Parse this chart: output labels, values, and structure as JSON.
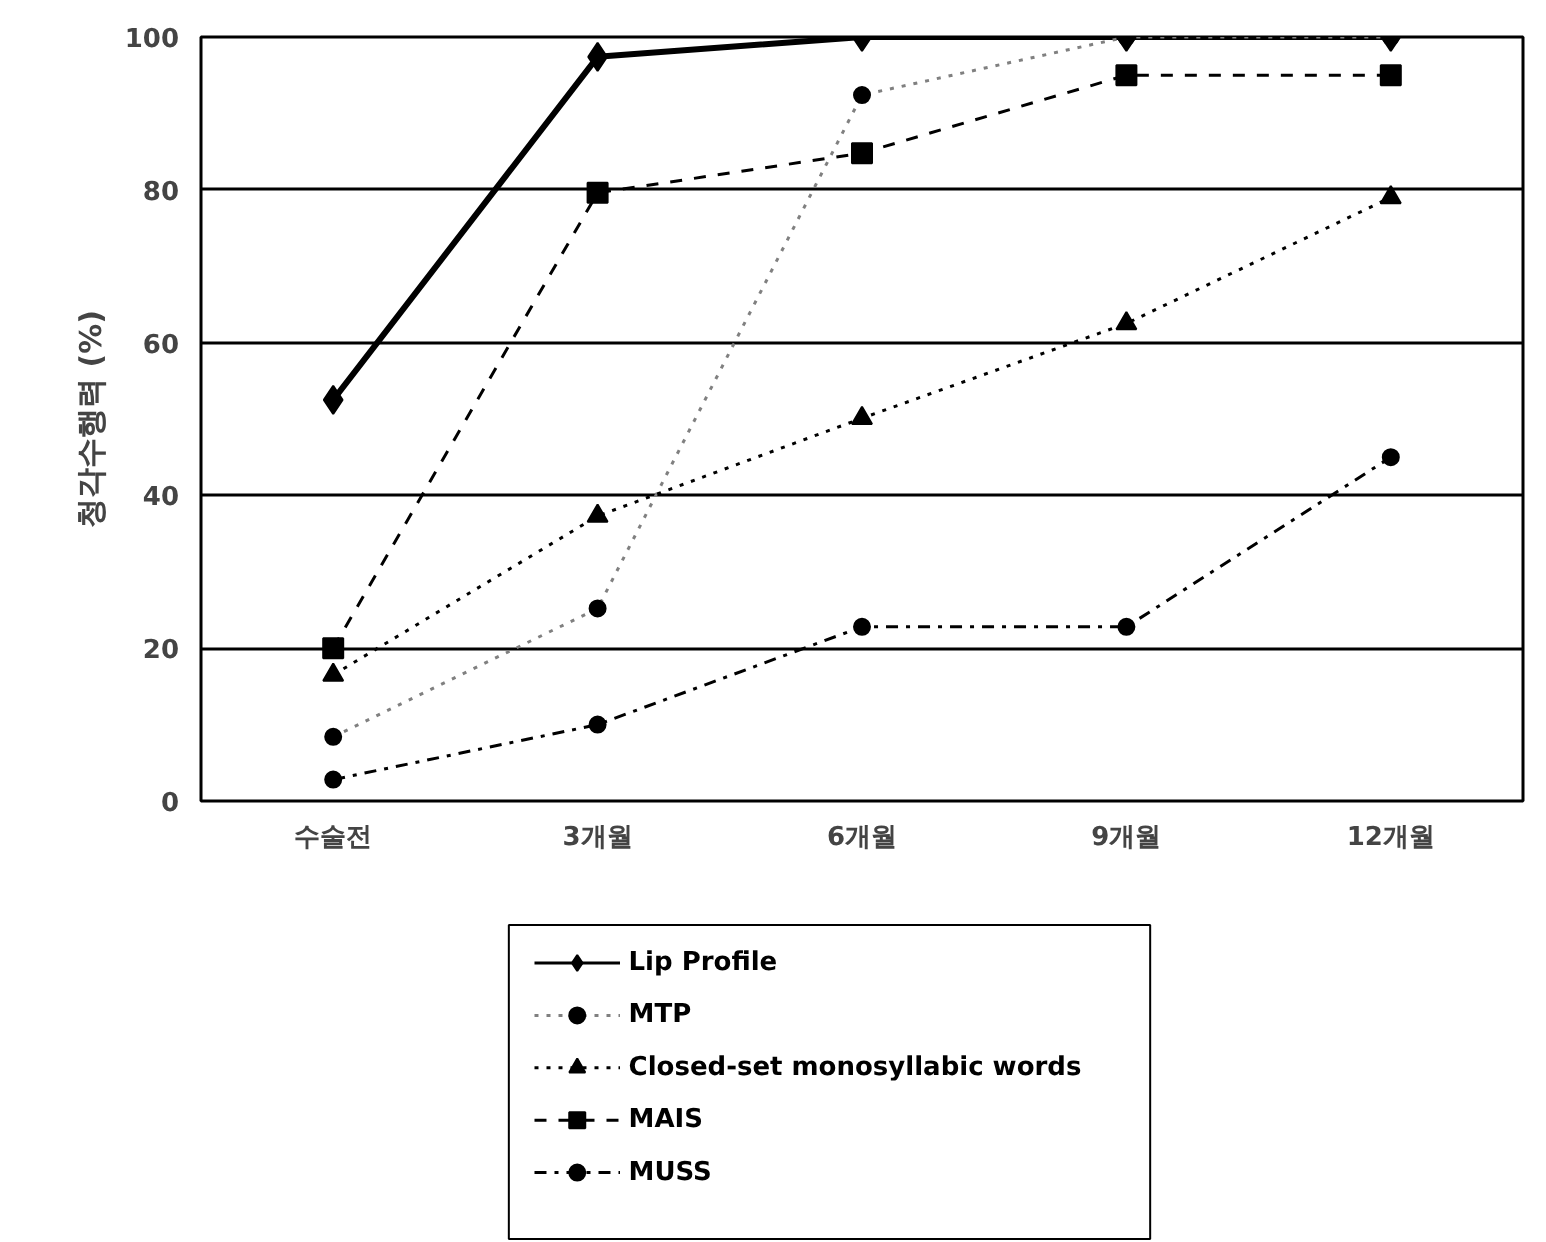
{
  "chart_data": {
    "type": "line",
    "ylabel": "청각수행력 (%)",
    "categories": [
      "수술전",
      "3개월",
      "6개월",
      "9개월",
      "12개월"
    ],
    "ylim": [
      0,
      100
    ],
    "yticks": [
      0,
      20,
      40,
      60,
      80,
      100
    ],
    "grid": "y",
    "legend": "bottom",
    "series": [
      {
        "name": "Lip Profile",
        "color": "#000000",
        "marker": "diamond",
        "line_style": "solid",
        "values": [
          52.5,
          97.4,
          100,
          100,
          100
        ]
      },
      {
        "name": "MTP",
        "color": "#808080",
        "marker": "circle",
        "line_style": "dotted",
        "values": [
          8.4,
          25.2,
          92.4,
          100,
          100
        ]
      },
      {
        "name": "Closed-set monosyllabic words",
        "color": "#000000",
        "marker": "triangle",
        "line_style": "dotted",
        "values": [
          16.5,
          37.3,
          50.1,
          62.5,
          79
        ]
      },
      {
        "name": "MAIS",
        "color": "#000000",
        "marker": "square",
        "line_style": "dashed",
        "values": [
          20,
          79.6,
          84.8,
          95,
          95
        ]
      },
      {
        "name": "MUSS",
        "color": "#000000",
        "marker": "circle",
        "line_style": "dashdot",
        "values": [
          2.8,
          10,
          22.8,
          22.8,
          45
        ]
      }
    ]
  }
}
